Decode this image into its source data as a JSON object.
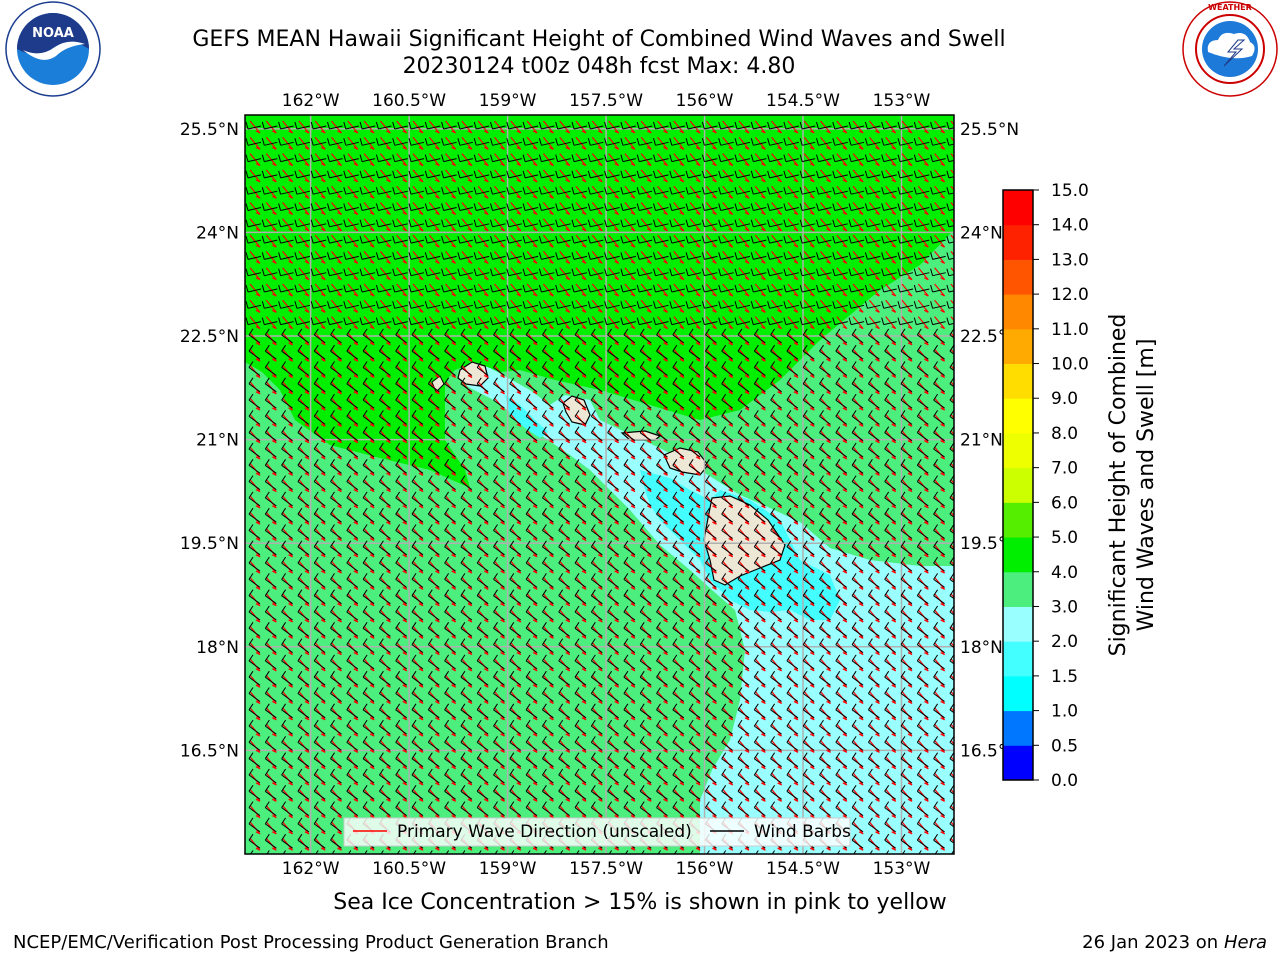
{
  "title": {
    "line1": "GEFS MEAN Hawaii Significant Height of Combined Wind Waves and Swell",
    "line2": "20230124 t00z 048h fcst   Max: 4.80"
  },
  "logos": {
    "left": {
      "icon": "noaa-logo",
      "text": "NOAA",
      "ring_text": "NATIONAL OCEANIC AND ATMOSPHERIC ADMINISTRATION · U.S. DEPARTMENT OF COMMERCE"
    },
    "right": {
      "icon": "nws-logo",
      "ring_text": "NATIONAL WEATHER SERVICE"
    }
  },
  "map": {
    "lon_range": [
      -163.0,
      -152.2
    ],
    "lat_range": [
      15.0,
      25.7
    ],
    "lon_ticks": [
      "162°W",
      "160.5°W",
      "159°W",
      "157.5°W",
      "156°W",
      "154.5°W",
      "153°W"
    ],
    "lat_ticks": [
      "25.5°N",
      "24°N",
      "22.5°N",
      "21°N",
      "19.5°N",
      "18°N",
      "16.5°N"
    ],
    "grid": true,
    "max_value": 4.8
  },
  "legend": {
    "placement": "bottom-center",
    "items": [
      {
        "label": "Primary Wave Direction (unscaled)",
        "color": "#ff0000"
      },
      {
        "label": "Wind Barbs",
        "color": "#000000"
      }
    ]
  },
  "colorbar": {
    "label_line1": "Significant Height of Combined",
    "label_line2": "Wind Waves and Swell [m]",
    "ticks": [
      "0.0",
      "0.5",
      "1.0",
      "1.5",
      "2.0",
      "3.0",
      "4.0",
      "5.0",
      "6.0",
      "7.0",
      "8.0",
      "9.0",
      "10.0",
      "11.0",
      "12.0",
      "13.0",
      "14.0",
      "15.0"
    ],
    "colors": [
      "#0000ff",
      "#0077ff",
      "#00ffff",
      "#44ffff",
      "#99ffff",
      "#4cee7e",
      "#00ee00",
      "#55ee00",
      "#ccff00",
      "#eeff00",
      "#ffff00",
      "#ffdd00",
      "#ffaa00",
      "#ff8800",
      "#ff5500",
      "#ff2200",
      "#ff0000"
    ]
  },
  "caption": "Sea Ice Concentration > 15% is shown in pink to yellow",
  "footer": {
    "left": "NCEP/EMC/Verification Post Processing Product Generation Branch",
    "right_date": "26 Jan 2023 on ",
    "right_machine": "Hera"
  }
}
